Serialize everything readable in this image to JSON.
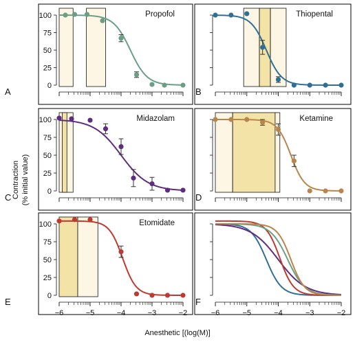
{
  "figure": {
    "ylabel_line1": "Contraction",
    "ylabel_line2": "(% initial value)",
    "xlabel": "Anesthetic [(log(M)]"
  },
  "colors": {
    "frame": "#000000",
    "box_light": "#fdf6e4",
    "box_dark": "#f4e3a6",
    "propofol": "#6a9f86",
    "thiopental": "#2f6f96",
    "midazolam": "#5e2d80",
    "ketamine": "#b8864a",
    "etomidate": "#c0392f"
  },
  "chart_data": [
    {
      "panel": "A",
      "type": "scatter",
      "drug": "Propofol",
      "color": "#6a9f86",
      "xlim": [
        -6,
        -2
      ],
      "ylim": [
        0,
        100
      ],
      "yticks": [
        0,
        25,
        50,
        75,
        100
      ],
      "xticks_major": [
        -6,
        -5,
        -4,
        -3,
        -2
      ],
      "xtick_labels": [],
      "ytick_labels": [
        "0",
        "25",
        "50",
        "75",
        "100"
      ],
      "fit": {
        "top": 100,
        "bottom": 0,
        "logEC50": -3.7,
        "hill": 1.6
      },
      "points": [
        {
          "x": -5.8,
          "y": 100
        },
        {
          "x": -5.5,
          "y": 101
        },
        {
          "x": -5.1,
          "y": 101
        },
        {
          "x": -4.6,
          "y": 92
        },
        {
          "x": -4.0,
          "y": 67,
          "err": 5
        },
        {
          "x": -3.5,
          "y": 15,
          "err": 4
        },
        {
          "x": -3.0,
          "y": 1
        },
        {
          "x": -2.6,
          "y": 0
        },
        {
          "x": -2.0,
          "y": 0
        }
      ],
      "boxes": [
        {
          "x0": -6.0,
          "x1": -5.55,
          "shade": "light"
        },
        {
          "x0": -5.12,
          "x1": -4.5,
          "shade": "light"
        }
      ]
    },
    {
      "panel": "B",
      "type": "scatter",
      "drug": "Thiopental",
      "color": "#2f6f96",
      "xlim": [
        -6,
        -2
      ],
      "ylim": [
        0,
        100
      ],
      "yticks": [
        0,
        25,
        50,
        75,
        100
      ],
      "xticks_major": [
        -6,
        -5,
        -4,
        -3,
        -2
      ],
      "xtick_labels": [],
      "ytick_labels": [],
      "fit": {
        "top": 100,
        "bottom": 0,
        "logEC50": -4.38,
        "hill": 1.8
      },
      "points": [
        {
          "x": -6.0,
          "y": 100
        },
        {
          "x": -5.5,
          "y": 100
        },
        {
          "x": -5.0,
          "y": 102
        },
        {
          "x": -4.5,
          "y": 54,
          "err": 10
        },
        {
          "x": -4.0,
          "y": 8,
          "err": 4
        },
        {
          "x": -3.5,
          "y": 0
        },
        {
          "x": -3.0,
          "y": 0
        },
        {
          "x": -2.5,
          "y": 0
        },
        {
          "x": -2.0,
          "y": 0
        }
      ],
      "boxes": [
        {
          "x0": -5.1,
          "x1": -4.6,
          "shade": "light"
        },
        {
          "x0": -4.6,
          "x1": -4.25,
          "shade": "dark"
        },
        {
          "x0": -4.25,
          "x1": -3.75,
          "shade": "light"
        }
      ]
    },
    {
      "panel": "C",
      "type": "scatter",
      "drug": "Midazolam",
      "color": "#5e2d80",
      "xlim": [
        -6,
        -2
      ],
      "ylim": [
        0,
        100
      ],
      "yticks": [
        0,
        25,
        50,
        75,
        100
      ],
      "xticks_major": [
        -6,
        -5,
        -4,
        -3,
        -2
      ],
      "xtick_labels": [],
      "ytick_labels": [
        "0",
        "25",
        "50",
        "75",
        "100"
      ],
      "fit": {
        "top": 100,
        "bottom": 0,
        "logEC50": -4.0,
        "hill": 1.0
      },
      "points": [
        {
          "x": -6.0,
          "y": 102
        },
        {
          "x": -5.6,
          "y": 101
        },
        {
          "x": -5.0,
          "y": 99
        },
        {
          "x": -4.5,
          "y": 87,
          "err": 7
        },
        {
          "x": -4.0,
          "y": 62,
          "err": 11
        },
        {
          "x": -3.6,
          "y": 18,
          "err": 12
        },
        {
          "x": -3.0,
          "y": 10,
          "err": 9
        },
        {
          "x": -2.5,
          "y": 1
        },
        {
          "x": -2.0,
          "y": 1
        }
      ],
      "boxes": [
        {
          "x0": -6.0,
          "x1": -5.55,
          "shade": "light"
        },
        {
          "x0": -5.9,
          "x1": -5.75,
          "shade": "dark"
        }
      ]
    },
    {
      "panel": "D",
      "type": "scatter",
      "drug": "Ketamine",
      "color": "#b8864a",
      "xlim": [
        -6,
        -2
      ],
      "ylim": [
        0,
        100
      ],
      "yticks": [
        0,
        25,
        50,
        75,
        100
      ],
      "xticks_major": [
        -6,
        -5,
        -4,
        -3,
        -2
      ],
      "xtick_labels": [],
      "ytick_labels": [],
      "fit": {
        "top": 100,
        "bottom": 0,
        "logEC50": -3.6,
        "hill": 2.0
      },
      "points": [
        {
          "x": -6.0,
          "y": 100
        },
        {
          "x": -5.5,
          "y": 100
        },
        {
          "x": -5.0,
          "y": 100
        },
        {
          "x": -4.5,
          "y": 96,
          "err": 4
        },
        {
          "x": -4.0,
          "y": 86,
          "err": 8
        },
        {
          "x": -3.5,
          "y": 42,
          "err": 8
        },
        {
          "x": -3.0,
          "y": 0
        },
        {
          "x": -2.5,
          "y": 0
        },
        {
          "x": -2.0,
          "y": 0
        }
      ],
      "boxes": [
        {
          "x0": -6.0,
          "x1": -5.45,
          "shade": "light"
        },
        {
          "x0": -5.45,
          "x1": -4.1,
          "shade": "dark"
        },
        {
          "x0": -4.1,
          "x1": -3.95,
          "shade": "light"
        }
      ]
    },
    {
      "panel": "E",
      "type": "scatter",
      "drug": "Etomidate",
      "color": "#c0392f",
      "xlim": [
        -6,
        -2
      ],
      "ylim": [
        0,
        100
      ],
      "yticks": [
        0,
        25,
        50,
        75,
        100
      ],
      "xticks_major": [
        -6,
        -5,
        -4,
        -3,
        -2
      ],
      "xtick_labels": [
        "−6",
        "−5",
        "−4",
        "−3",
        "−2"
      ],
      "ytick_labels": [
        "0",
        "25",
        "50",
        "75",
        "100"
      ],
      "fit": {
        "top": 104,
        "bottom": 0,
        "logEC50": -3.95,
        "hill": 2.0
      },
      "points": [
        {
          "x": -6.0,
          "y": 104
        },
        {
          "x": -5.5,
          "y": 106
        },
        {
          "x": -5.0,
          "y": 106
        },
        {
          "x": -4.0,
          "y": 61,
          "err": 8
        },
        {
          "x": -3.5,
          "y": 2
        },
        {
          "x": -3.0,
          "y": 0
        },
        {
          "x": -2.5,
          "y": 0
        },
        {
          "x": -2.0,
          "y": 0
        }
      ],
      "boxes": [
        {
          "x0": -6.0,
          "x1": -5.4,
          "shade": "dark"
        },
        {
          "x0": -5.4,
          "x1": -4.75,
          "shade": "light"
        }
      ]
    },
    {
      "panel": "F",
      "type": "line",
      "drug": "",
      "xlim": [
        -6,
        -2
      ],
      "ylim": [
        0,
        100
      ],
      "yticks": [
        0,
        25,
        50,
        75,
        100
      ],
      "xticks_major": [
        -6,
        -5,
        -4,
        -3,
        -2
      ],
      "xtick_labels": [
        "−6",
        "−5",
        "−4",
        "−3",
        "−2"
      ],
      "ytick_labels": [],
      "series": [
        {
          "color": "#2f6f96",
          "fit": {
            "top": 100,
            "bottom": 0,
            "logEC50": -4.38,
            "hill": 1.8
          }
        },
        {
          "color": "#5e2d80",
          "fit": {
            "top": 100,
            "bottom": 0,
            "logEC50": -4.0,
            "hill": 1.0
          }
        },
        {
          "color": "#c0392f",
          "fit": {
            "top": 104,
            "bottom": 0,
            "logEC50": -3.95,
            "hill": 2.0
          }
        },
        {
          "color": "#6a9f86",
          "fit": {
            "top": 100,
            "bottom": 0,
            "logEC50": -3.7,
            "hill": 1.6
          }
        },
        {
          "color": "#b8864a",
          "fit": {
            "top": 100,
            "bottom": 0,
            "logEC50": -3.6,
            "hill": 2.0
          }
        }
      ],
      "points": [],
      "boxes": []
    }
  ]
}
